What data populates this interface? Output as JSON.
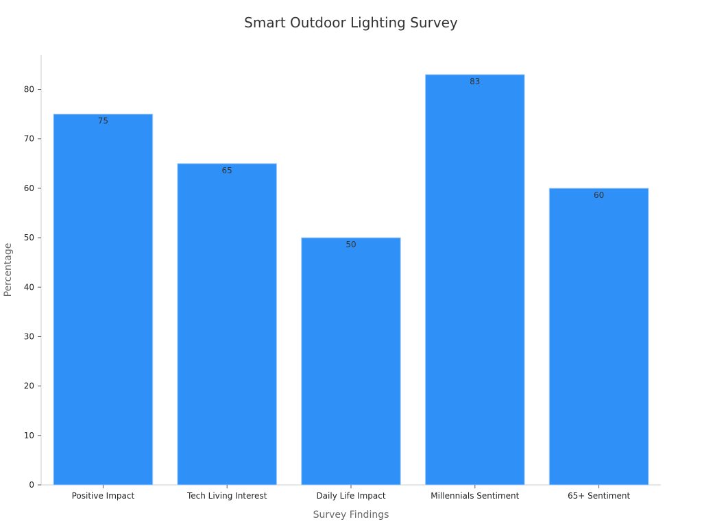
{
  "chart_data": {
    "type": "bar",
    "title": "Smart Outdoor Lighting Survey",
    "xlabel": "Survey Findings",
    "ylabel": "Percentage",
    "categories": [
      "Positive Impact",
      "Tech Living Interest",
      "Daily Life Impact",
      "Millennials Sentiment",
      "65+ Sentiment"
    ],
    "values": [
      75,
      65,
      50,
      83,
      60
    ],
    "ylim": [
      0,
      87
    ],
    "yticks": [
      0,
      10,
      20,
      30,
      40,
      50,
      60,
      70,
      80
    ],
    "data_labels": true,
    "grid": false,
    "legend": "none",
    "bar_color": "#2f91f8",
    "bar_edge_color": "#a9cdf7"
  }
}
